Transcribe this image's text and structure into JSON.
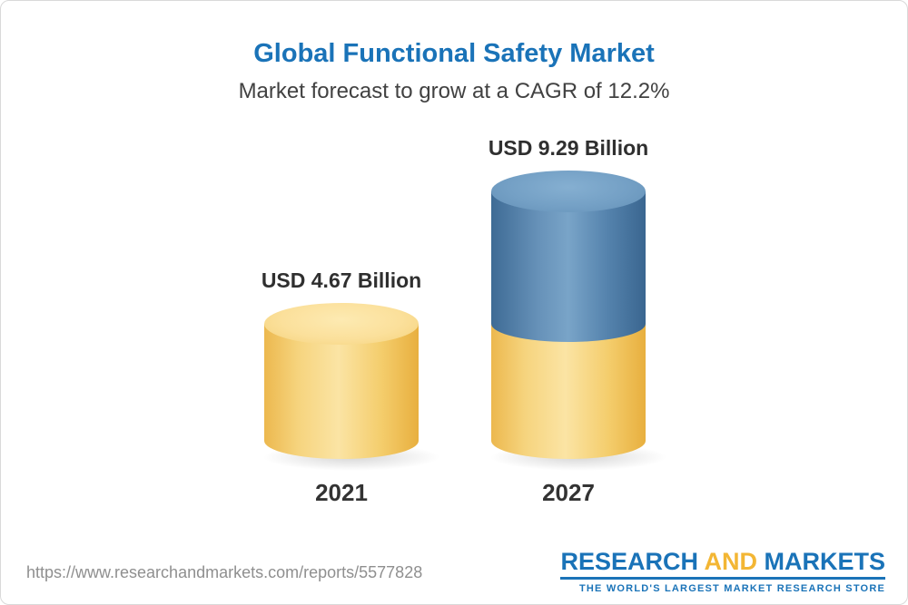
{
  "chart_data": {
    "type": "bar",
    "title": "Global Functional Safety Market",
    "subtitle": "Market forecast to grow at a CAGR of 12.2%",
    "unit": "USD Billion",
    "categories": [
      "2021",
      "2027"
    ],
    "values": [
      4.67,
      9.29
    ],
    "value_labels": [
      "USD 4.67 Billion",
      "USD 9.29 Billion"
    ],
    "cagr_text": "12.2%",
    "ylim": [
      0,
      10
    ],
    "grid": false,
    "legend": false,
    "bar_style_note": "3D cylinders; 2021 bar gold; 2027 bar stacked: gold base equal to 2021 value with blue growth segment on top",
    "colors": {
      "gold": "#F5C963",
      "blue": "#4E7FA9",
      "title_blue": "#1A73B8"
    }
  },
  "footer": {
    "url": "https://www.researchandmarkets.com/reports/5577828",
    "logo": {
      "word1": "RESEARCH",
      "word2": "AND",
      "word3": "MARKETS",
      "tagline": "THE WORLD'S LARGEST MARKET RESEARCH STORE"
    }
  }
}
